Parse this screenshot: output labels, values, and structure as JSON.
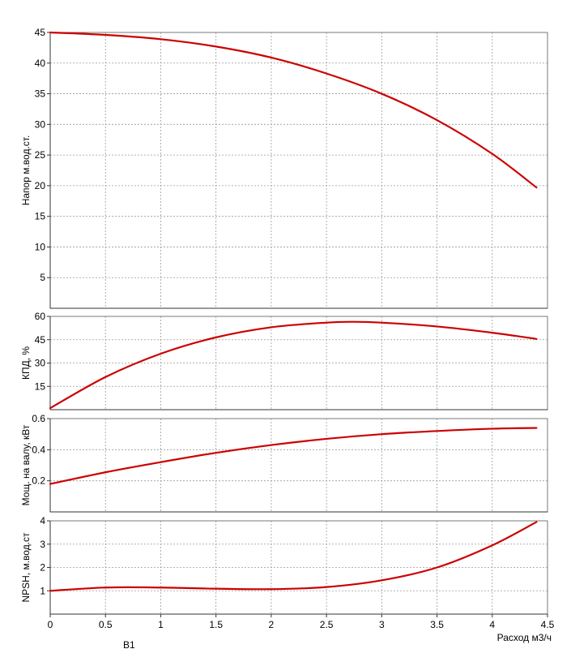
{
  "chart_data": [
    {
      "type": "line",
      "ylabel": "Напор м.вод.ст.",
      "ylim": [
        0,
        45
      ],
      "yticks": [
        5,
        10,
        15,
        20,
        25,
        30,
        35,
        40,
        45
      ],
      "grid": true,
      "series": [
        {
          "color": "#cc0000",
          "x": [
            0,
            0.5,
            1,
            1.5,
            2,
            2.5,
            3,
            3.5,
            4,
            4.4
          ],
          "y": [
            45,
            44.6,
            43.9,
            42.7,
            40.9,
            38.3,
            35.0,
            30.7,
            25.2,
            19.7
          ]
        }
      ]
    },
    {
      "type": "line",
      "ylabel": "КПД, %",
      "ylim": [
        0,
        60
      ],
      "yticks": [
        15,
        30,
        45,
        60
      ],
      "grid": true,
      "series": [
        {
          "color": "#cc0000",
          "x": [
            0,
            0.5,
            1,
            1.5,
            2,
            2.5,
            2.75,
            3,
            3.5,
            4,
            4.4
          ],
          "y": [
            1,
            21,
            36,
            46.5,
            53,
            56,
            56.5,
            56,
            53.5,
            49.5,
            45.5
          ]
        }
      ]
    },
    {
      "type": "line",
      "ylabel": "Мощ. на валу, кВт",
      "ylim": [
        0,
        0.6
      ],
      "yticks": [
        0.2,
        0.4,
        0.6
      ],
      "grid": true,
      "series": [
        {
          "color": "#cc0000",
          "x": [
            0,
            0.5,
            1,
            1.5,
            2,
            2.5,
            3,
            3.5,
            4,
            4.4
          ],
          "y": [
            0.18,
            0.255,
            0.32,
            0.38,
            0.43,
            0.47,
            0.5,
            0.52,
            0.535,
            0.54
          ]
        }
      ]
    },
    {
      "type": "line",
      "ylabel": "NPSH, м.вод.ст",
      "ylim": [
        0,
        4
      ],
      "yticks": [
        1,
        2,
        3,
        4
      ],
      "grid": true,
      "xlabel": "Расход м3/ч",
      "xlim": [
        0,
        4.5
      ],
      "xticks": [
        0,
        0.5,
        1,
        1.5,
        2,
        2.5,
        3,
        3.5,
        4,
        4.5
      ],
      "series": [
        {
          "color": "#cc0000",
          "x": [
            0,
            0.5,
            1,
            1.5,
            2,
            2.5,
            3,
            3.5,
            4,
            4.4
          ],
          "y": [
            1.0,
            1.14,
            1.14,
            1.09,
            1.07,
            1.16,
            1.45,
            2.0,
            2.95,
            3.95
          ]
        }
      ]
    }
  ],
  "footer_label": "В1"
}
